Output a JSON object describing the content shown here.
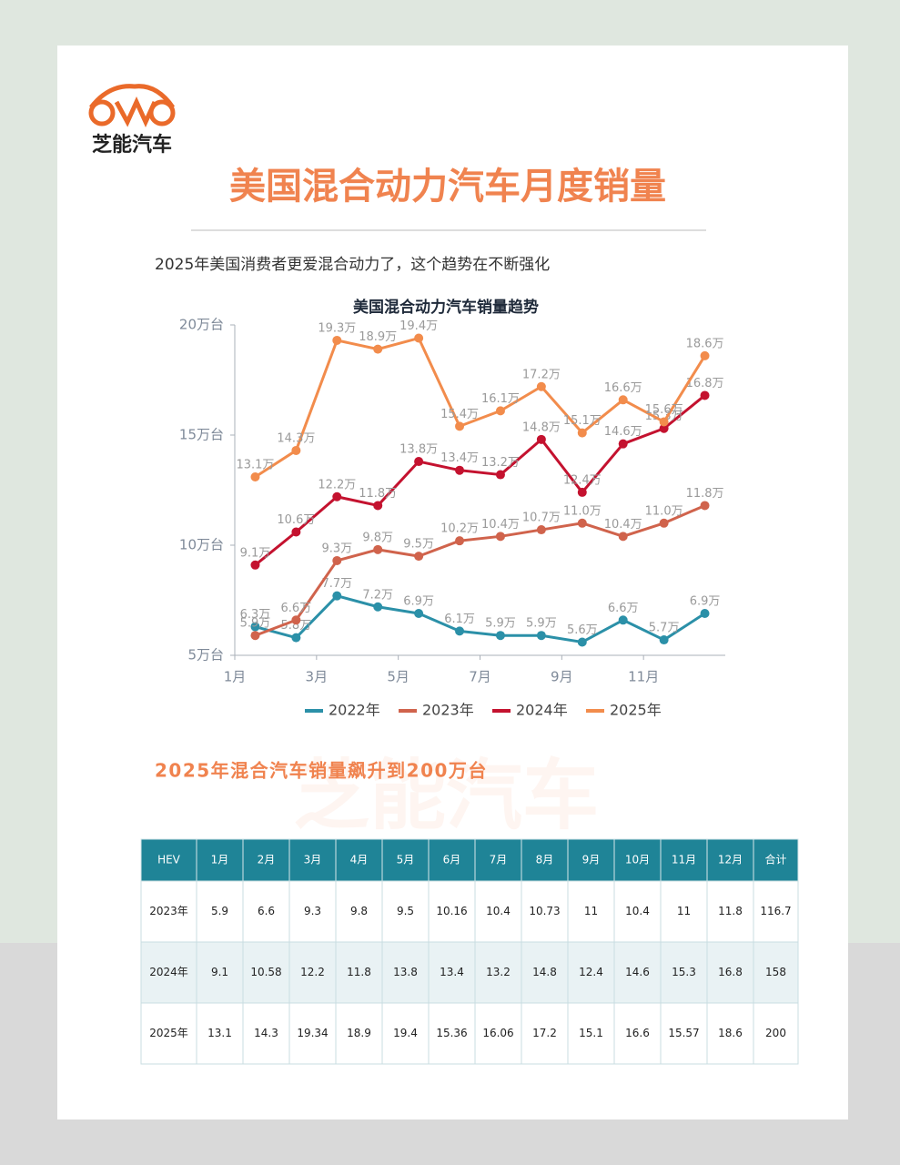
{
  "header": {
    "logo": "芝能汽车",
    "title": "美国混合动力汽车月度销量",
    "subtitle": "2025年美国消费者更爱混合动力了，这个趋势在不断强化"
  },
  "chart_data": {
    "type": "line",
    "title": "美国混合动力汽车销量趋势",
    "x": [
      1.5,
      2.5,
      3.5,
      4.5,
      5.5,
      6.5,
      7.5,
      8.5,
      9.5,
      10.5,
      11.5,
      12.5
    ],
    "xlim": [
      1,
      13
    ],
    "xticks": [
      {
        "value": 1,
        "label": "1月"
      },
      {
        "value": 3,
        "label": "3月"
      },
      {
        "value": 5,
        "label": "5月"
      },
      {
        "value": 7,
        "label": "7月"
      },
      {
        "value": 9,
        "label": "9月"
      },
      {
        "value": 11,
        "label": "11月"
      }
    ],
    "ylim": [
      5,
      20
    ],
    "yticks": [
      {
        "value": 5,
        "label": "5万台"
      },
      {
        "value": 10,
        "label": "10万台"
      },
      {
        "value": 15,
        "label": "15万台"
      },
      {
        "value": 20,
        "label": "20万台"
      }
    ],
    "grid": false,
    "legend": "bottom",
    "series": [
      {
        "name": "2022年",
        "color": "#2b90a8",
        "values": [
          6.3,
          5.8,
          7.7,
          7.2,
          6.9,
          6.1,
          5.9,
          5.9,
          5.6,
          6.6,
          5.7,
          6.9
        ],
        "value_labels": [
          "6.3万",
          "5.8万",
          "7.7万",
          "7.2万",
          "6.9万",
          "6.1万",
          "5.9万",
          "5.9万",
          "5.6万",
          "6.6万",
          "5.7万",
          "6.9万"
        ]
      },
      {
        "name": "2023年",
        "color": "#d0634c",
        "values": [
          5.9,
          6.6,
          9.3,
          9.8,
          9.5,
          10.2,
          10.4,
          10.7,
          11,
          10.4,
          11,
          11.8
        ],
        "value_labels": [
          "5.9万",
          "6.6万",
          "9.3万",
          "9.8万",
          "9.5万",
          "10.2万",
          "10.4万",
          "10.7万",
          "11.0万",
          "10.4万",
          "11.0万",
          "11.8万"
        ]
      },
      {
        "name": "2024年",
        "color": "#c4122f",
        "values": [
          9.1,
          10.6,
          12.2,
          11.8,
          13.8,
          13.4,
          13.2,
          14.8,
          12.4,
          14.6,
          15.3,
          16.8
        ],
        "value_labels": [
          "9.1万",
          "10.6万",
          "12.2万",
          "11.8万",
          "13.8万",
          "13.4万",
          "13.2万",
          "14.8万",
          "12.4万",
          "14.6万",
          "15.3万",
          "16.8万"
        ]
      },
      {
        "name": "2025年",
        "color": "#f28c4c",
        "values": [
          13.1,
          14.3,
          19.3,
          18.9,
          19.4,
          15.4,
          16.1,
          17.2,
          15.1,
          16.6,
          15.6,
          18.6
        ],
        "value_labels": [
          "13.1万",
          "14.3万",
          "19.3万",
          "18.9万",
          "19.4万",
          "15.4万",
          "16.1万",
          "17.2万",
          "15.1万",
          "16.6万",
          "15.6万",
          "18.6万"
        ]
      }
    ]
  },
  "section": {
    "heading": "2025年混合汽车销量飙升到200万台",
    "watermark": "芝能汽车"
  },
  "table": {
    "header": [
      "HEV",
      "1月",
      "2月",
      "3月",
      "4月",
      "5月",
      "6月",
      "7月",
      "8月",
      "9月",
      "10月",
      "11月",
      "12月",
      "合计"
    ],
    "rows": [
      [
        "2023年",
        5.9,
        6.6,
        9.3,
        9.8,
        9.5,
        10.16,
        10.4,
        10.73,
        11,
        10.4,
        11,
        11.8,
        116.7
      ],
      [
        "2024年",
        9.1,
        10.58,
        12.2,
        11.8,
        13.8,
        13.4,
        13.2,
        14.8,
        12.4,
        14.6,
        15.3,
        16.8,
        158
      ],
      [
        "2025年",
        13.1,
        14.3,
        19.34,
        18.9,
        19.4,
        15.36,
        16.06,
        17.2,
        15.1,
        16.6,
        15.57,
        18.6,
        200
      ]
    ]
  }
}
